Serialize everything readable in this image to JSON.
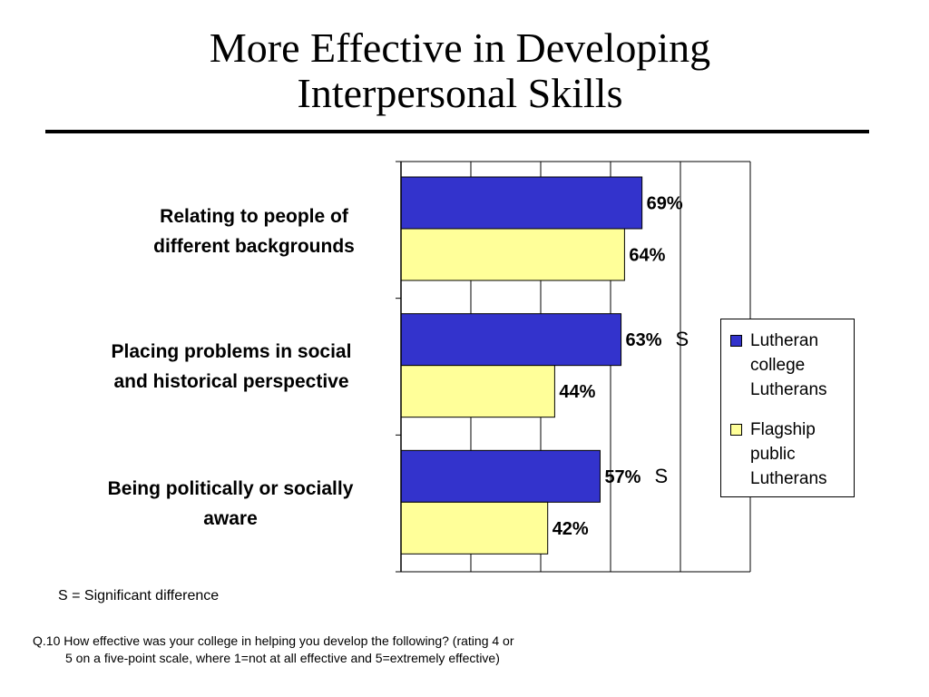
{
  "title": {
    "line1": "More Effective in Developing",
    "line2": "Interpersonal Skills"
  },
  "colors": {
    "series_1": "#3333CC",
    "series_2": "#FFFF99",
    "grid": "#000000"
  },
  "category_labels": [
    {
      "line1": "Relating to people of",
      "line2": "different backgrounds"
    },
    {
      "line1": "Placing problems in social",
      "line2": "and historical perspective"
    },
    {
      "line1": "Being politically or socially",
      "line2": "aware"
    }
  ],
  "chart_data": {
    "type": "bar",
    "orientation": "horizontal",
    "categories": [
      "Relating to people of different backgrounds",
      "Placing problems in social and historical perspective",
      "Being politically or socially aware"
    ],
    "series": [
      {
        "name": "Lutheran college Lutherans",
        "values": [
          69,
          63,
          57
        ],
        "labels": [
          "69%",
          "63%",
          "57%"
        ],
        "markers": [
          "",
          "S",
          "S"
        ]
      },
      {
        "name": "Flagship public Lutherans",
        "values": [
          64,
          44,
          42
        ],
        "labels": [
          "64%",
          "44%",
          "42%"
        ],
        "markers": [
          "",
          "",
          ""
        ]
      }
    ],
    "xlim": [
      0,
      100
    ],
    "grid": true,
    "legend_position": "right"
  },
  "legend": [
    {
      "line1": "Lutheran",
      "line2": "college",
      "line3": "Lutherans"
    },
    {
      "line1": "Flagship",
      "line2": "public",
      "line3": "Lutherans"
    }
  ],
  "footnotes": {
    "significance": "S = Significant difference",
    "question_line1": "Q.10 How effective was your college in helping you develop the following?  (rating 4 or",
    "question_line2": "5 on a five-point scale, where 1=not at all effective and 5=extremely effective)"
  }
}
